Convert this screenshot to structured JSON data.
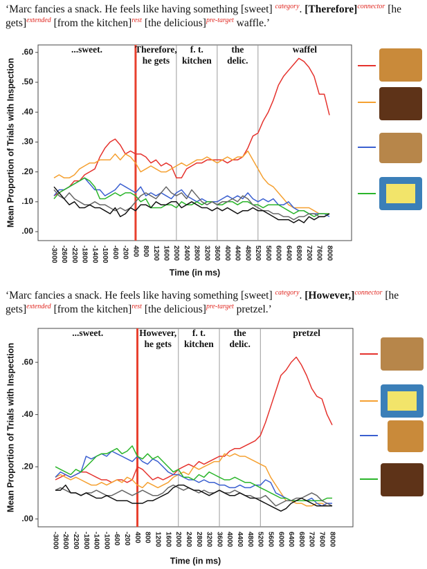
{
  "chart_data": [
    {
      "type": "line",
      "caption": [
        {
          "text": "‘Marc fancies a snack. He feels like having something [sweet] ",
          "style": "plain"
        },
        {
          "text": "category",
          "style": "sup"
        },
        {
          "text": ". ",
          "style": "plain"
        },
        {
          "text": "[Therefore]",
          "style": "bold"
        },
        {
          "text": "connector",
          "style": "sup"
        },
        {
          "text": " [he gets]",
          "style": "plain"
        },
        {
          "text": "extended",
          "style": "sup"
        },
        {
          "text": " [from the kitchen]",
          "style": "plain"
        },
        {
          "text": "rest",
          "style": "sup"
        },
        {
          "text": " [the delicious]",
          "style": "plain"
        },
        {
          "text": "pre-target",
          "style": "sup"
        },
        {
          "text": " waffle.’",
          "style": "plain"
        }
      ],
      "y_label": "Mean Proportion of Trials with Inspection",
      "x_label": "Time (in ms)",
      "regions": [
        [
          "...sweet."
        ],
        [
          "Therefore,",
          "he gets"
        ],
        [
          "f. t.",
          "kitchen"
        ],
        [
          "the",
          "delic."
        ],
        [
          "waffel"
        ]
      ],
      "vlines": [
        {
          "at": "400",
          "color": "#e8402e"
        },
        {
          "at": "2000",
          "color": "#9a9a9a"
        },
        {
          "at": "3600",
          "color": "#9a9a9a"
        },
        {
          "at": "5200",
          "color": "#9a9a9a"
        }
      ],
      "categories": [
        "-3000",
        null,
        "-2600",
        null,
        "-2200",
        null,
        "-1800",
        null,
        "-1400",
        null,
        "-1000",
        null,
        "-600",
        null,
        "-200",
        null,
        "400",
        null,
        "800",
        null,
        "1200",
        null,
        "1600",
        null,
        "2000",
        null,
        "2400",
        null,
        "2800",
        null,
        "3200",
        null,
        "3600",
        null,
        "4000",
        null,
        "4400",
        null,
        "4800",
        null,
        "5200",
        null,
        "5600",
        null,
        "6000",
        null,
        "6400",
        null,
        "6800",
        null,
        "7200",
        null,
        "7600",
        null,
        "8000"
      ],
      "ylim": [
        -0.03,
        0.625
      ],
      "yticks": [
        {
          "value": 0,
          "label": ".00"
        },
        {
          "value": 0.1,
          "label": ".10"
        },
        {
          "value": 0.2,
          "label": ".20"
        },
        {
          "value": 0.3,
          "label": ".30"
        },
        {
          "value": 0.4,
          "label": ".40"
        },
        {
          "value": 0.5,
          "label": ".50"
        },
        {
          "value": 0.6,
          "label": ".60"
        }
      ],
      "legend": "right",
      "series": [
        {
          "color": "#e5322d",
          "values": [
            0.12,
            0.13,
            0.14,
            0.15,
            0.17,
            0.17,
            0.19,
            0.2,
            0.21,
            0.25,
            0.28,
            0.3,
            0.31,
            0.29,
            0.26,
            0.27,
            0.26,
            0.26,
            0.25,
            0.23,
            0.24,
            0.22,
            0.23,
            0.22,
            0.18,
            0.18,
            0.21,
            0.22,
            0.23,
            0.23,
            0.24,
            0.24,
            0.24,
            0.24,
            0.23,
            0.24,
            0.24,
            0.25,
            0.28,
            0.32,
            0.33,
            0.37,
            0.4,
            0.44,
            0.49,
            0.52,
            0.54,
            0.56,
            0.58,
            0.57,
            0.55,
            0.52,
            0.46,
            0.46,
            0.39
          ]
        },
        {
          "color": "#f5a030",
          "values": [
            0.18,
            0.19,
            0.18,
            0.18,
            0.19,
            0.21,
            0.22,
            0.23,
            0.23,
            0.24,
            0.24,
            0.24,
            0.26,
            0.24,
            0.26,
            0.25,
            0.23,
            0.2,
            0.21,
            0.22,
            0.21,
            0.2,
            0.2,
            0.21,
            0.22,
            0.23,
            0.22,
            0.23,
            0.24,
            0.24,
            0.25,
            0.24,
            0.23,
            0.24,
            0.25,
            0.24,
            0.25,
            0.25,
            0.27,
            0.24,
            0.21,
            0.18,
            0.16,
            0.15,
            0.13,
            0.11,
            0.09,
            0.08,
            0.08,
            0.08,
            0.08,
            0.07,
            0.06,
            0.06,
            0.06
          ]
        },
        {
          "color": "#3a5fd0",
          "values": [
            0.12,
            0.14,
            0.14,
            0.15,
            0.16,
            0.17,
            0.18,
            0.16,
            0.14,
            0.14,
            0.12,
            0.13,
            0.14,
            0.16,
            0.15,
            0.14,
            0.13,
            0.15,
            0.12,
            0.13,
            0.12,
            0.13,
            0.12,
            0.11,
            0.13,
            0.14,
            0.12,
            0.11,
            0.1,
            0.11,
            0.1,
            0.1,
            0.1,
            0.11,
            0.12,
            0.11,
            0.12,
            0.11,
            0.13,
            0.11,
            0.1,
            0.11,
            0.1,
            0.11,
            0.09,
            0.09,
            0.1,
            0.08,
            0.07,
            0.07,
            0.06,
            0.06,
            0.06,
            0.06,
            0.05
          ]
        },
        {
          "color": "#2ab52a",
          "values": [
            0.11,
            0.13,
            0.14,
            0.15,
            0.16,
            0.17,
            0.18,
            0.17,
            0.15,
            0.11,
            0.11,
            0.12,
            0.13,
            0.12,
            0.13,
            0.13,
            0.12,
            0.1,
            0.11,
            0.08,
            0.08,
            0.08,
            0.09,
            0.09,
            0.08,
            0.1,
            0.09,
            0.09,
            0.1,
            0.09,
            0.1,
            0.1,
            0.09,
            0.09,
            0.1,
            0.1,
            0.09,
            0.1,
            0.1,
            0.09,
            0.09,
            0.08,
            0.09,
            0.09,
            0.09,
            0.08,
            0.07,
            0.06,
            0.07,
            0.07,
            0.06,
            0.05,
            0.06,
            0.06,
            0.06
          ]
        },
        {
          "color": "#666666",
          "values": [
            0.14,
            0.12,
            0.11,
            0.13,
            0.11,
            0.1,
            0.09,
            0.09,
            0.1,
            0.09,
            0.09,
            0.08,
            0.07,
            0.08,
            0.07,
            0.08,
            0.1,
            0.12,
            0.13,
            0.12,
            0.11,
            0.13,
            0.15,
            0.13,
            0.12,
            0.13,
            0.11,
            0.14,
            0.12,
            0.1,
            0.09,
            0.1,
            0.09,
            0.1,
            0.1,
            0.11,
            0.1,
            0.12,
            0.11,
            0.09,
            0.08,
            0.07,
            0.07,
            0.06,
            0.06,
            0.05,
            0.05,
            0.04,
            0.05,
            0.05,
            0.06,
            0.06,
            0.05,
            0.05,
            0.06
          ]
        },
        {
          "color": "#111111",
          "values": [
            0.15,
            0.13,
            0.11,
            0.09,
            0.1,
            0.08,
            0.08,
            0.09,
            0.08,
            0.08,
            0.07,
            0.06,
            0.08,
            0.05,
            0.06,
            0.08,
            0.07,
            0.09,
            0.09,
            0.08,
            0.1,
            0.09,
            0.09,
            0.1,
            0.1,
            0.08,
            0.09,
            0.1,
            0.09,
            0.08,
            0.08,
            0.07,
            0.08,
            0.07,
            0.08,
            0.07,
            0.06,
            0.07,
            0.07,
            0.08,
            0.07,
            0.07,
            0.06,
            0.05,
            0.04,
            0.04,
            0.04,
            0.03,
            0.04,
            0.03,
            0.05,
            0.04,
            0.05,
            0.05,
            0.06
          ]
        }
      ]
    },
    {
      "type": "line",
      "caption": [
        {
          "text": "‘Marc fancies a snack. He feels like having something [sweet] ",
          "style": "plain"
        },
        {
          "text": "category",
          "style": "sup"
        },
        {
          "text": ". ",
          "style": "plain"
        },
        {
          "text": "[However,]",
          "style": "bold"
        },
        {
          "text": "connector",
          "style": "sup"
        },
        {
          "text": " [he gets]",
          "style": "plain"
        },
        {
          "text": "extended",
          "style": "sup"
        },
        {
          "text": " [from the kitchen]",
          "style": "plain"
        },
        {
          "text": "rest",
          "style": "sup"
        },
        {
          "text": " [the delicious]",
          "style": "plain"
        },
        {
          "text": "pre-target",
          "style": "sup"
        },
        {
          "text": " pretzel.’",
          "style": "plain"
        }
      ],
      "y_label": "Mean Proportion of Trials with Inspection",
      "x_label": "Time (in ms)",
      "regions": [
        [
          "...sweet."
        ],
        [
          "However,",
          "he gets"
        ],
        [
          "f. t.",
          "kitchen"
        ],
        [
          "the",
          "delic."
        ],
        [
          "pretzel"
        ]
      ],
      "vlines": [
        {
          "at": "400",
          "color": "#e8402e"
        },
        {
          "at": "2000",
          "color": "#9a9a9a"
        },
        {
          "at": "3600",
          "color": "#9a9a9a"
        },
        {
          "at": "5200",
          "color": "#9a9a9a"
        }
      ],
      "categories": [
        "-3000",
        null,
        "-2600",
        null,
        "-2200",
        null,
        "-1800",
        null,
        "-1400",
        null,
        "-1000",
        null,
        "-600",
        null,
        "-200",
        null,
        "400",
        null,
        "800",
        null,
        "1200",
        null,
        "1600",
        null,
        "2000",
        null,
        "2400",
        null,
        "2800",
        null,
        "3200",
        null,
        "3600",
        null,
        "4000",
        null,
        "4400",
        null,
        "4800",
        null,
        "5200",
        null,
        "5600",
        null,
        "6000",
        null,
        "6400",
        null,
        "6800",
        null,
        "7200",
        null,
        "7600",
        null,
        "8000"
      ],
      "ylim": [
        -0.03,
        0.73
      ],
      "yticks": [
        {
          "value": 0,
          "label": ".00"
        },
        {
          "value": 0.2,
          "label": ".20"
        },
        {
          "value": 0.4,
          "label": ".40"
        },
        {
          "value": 0.6,
          "label": ".60"
        }
      ],
      "legend": "right",
      "series": [
        {
          "color": "#e5322d",
          "values": [
            0.15,
            0.16,
            0.17,
            0.16,
            0.17,
            0.18,
            0.18,
            0.17,
            0.16,
            0.15,
            0.15,
            0.14,
            0.15,
            0.15,
            0.14,
            0.15,
            0.2,
            0.19,
            0.17,
            0.15,
            0.16,
            0.15,
            0.16,
            0.17,
            0.19,
            0.2,
            0.21,
            0.2,
            0.22,
            0.21,
            0.22,
            0.23,
            0.24,
            0.24,
            0.26,
            0.27,
            0.27,
            0.28,
            0.29,
            0.3,
            0.32,
            0.37,
            0.43,
            0.49,
            0.55,
            0.57,
            0.6,
            0.62,
            0.59,
            0.55,
            0.5,
            0.47,
            0.46,
            0.4,
            0.36
          ]
        },
        {
          "color": "#f5a030",
          "values": [
            0.16,
            0.17,
            0.16,
            0.15,
            0.16,
            0.15,
            0.14,
            0.13,
            0.13,
            0.14,
            0.13,
            0.14,
            0.15,
            0.14,
            0.16,
            0.15,
            0.13,
            0.12,
            0.14,
            0.13,
            0.12,
            0.13,
            0.14,
            0.16,
            0.17,
            0.18,
            0.17,
            0.2,
            0.19,
            0.2,
            0.21,
            0.22,
            0.22,
            0.25,
            0.24,
            0.25,
            0.24,
            0.24,
            0.23,
            0.22,
            0.21,
            0.2,
            0.16,
            0.13,
            0.1,
            0.07,
            0.07,
            0.06,
            0.06,
            0.05,
            0.05,
            0.06,
            0.06,
            0.05,
            0.05
          ]
        },
        {
          "color": "#3a5fd0",
          "values": [
            0.16,
            0.18,
            0.17,
            0.16,
            0.17,
            0.18,
            0.24,
            0.23,
            0.24,
            0.25,
            0.24,
            0.26,
            0.25,
            0.24,
            0.23,
            0.22,
            0.24,
            0.22,
            0.21,
            0.23,
            0.22,
            0.2,
            0.18,
            0.17,
            0.17,
            0.16,
            0.15,
            0.15,
            0.14,
            0.15,
            0.14,
            0.14,
            0.13,
            0.13,
            0.12,
            0.12,
            0.13,
            0.12,
            0.12,
            0.13,
            0.13,
            0.15,
            0.14,
            0.1,
            0.09,
            0.08,
            0.07,
            0.07,
            0.07,
            0.07,
            0.08,
            0.06,
            0.05,
            0.06,
            0.06
          ]
        },
        {
          "color": "#2ab52a",
          "values": [
            0.2,
            0.19,
            0.18,
            0.17,
            0.19,
            0.18,
            0.2,
            0.22,
            0.24,
            0.25,
            0.25,
            0.26,
            0.27,
            0.25,
            0.26,
            0.28,
            0.24,
            0.23,
            0.25,
            0.23,
            0.24,
            0.22,
            0.2,
            0.18,
            0.19,
            0.16,
            0.16,
            0.15,
            0.17,
            0.16,
            0.18,
            0.17,
            0.16,
            0.15,
            0.15,
            0.16,
            0.15,
            0.14,
            0.14,
            0.13,
            0.12,
            0.11,
            0.1,
            0.09,
            0.08,
            0.08,
            0.07,
            0.07,
            0.07,
            0.07,
            0.07,
            0.07,
            0.07,
            0.08,
            0.08
          ]
        },
        {
          "color": "#666666",
          "values": [
            0.11,
            0.12,
            0.11,
            0.1,
            0.1,
            0.09,
            0.1,
            0.1,
            0.11,
            0.1,
            0.09,
            0.09,
            0.1,
            0.11,
            0.1,
            0.09,
            0.1,
            0.11,
            0.1,
            0.09,
            0.09,
            0.1,
            0.12,
            0.13,
            0.12,
            0.11,
            0.12,
            0.11,
            0.1,
            0.11,
            0.1,
            0.1,
            0.11,
            0.1,
            0.1,
            0.11,
            0.1,
            0.09,
            0.09,
            0.08,
            0.08,
            0.09,
            0.07,
            0.05,
            0.06,
            0.07,
            0.07,
            0.08,
            0.08,
            0.09,
            0.1,
            0.09,
            0.07,
            0.06,
            0.05
          ]
        },
        {
          "color": "#111111",
          "values": [
            0.11,
            0.11,
            0.13,
            0.1,
            0.1,
            0.09,
            0.1,
            0.09,
            0.08,
            0.08,
            0.09,
            0.08,
            0.07,
            0.07,
            0.07,
            0.06,
            0.06,
            0.06,
            0.07,
            0.07,
            0.08,
            0.09,
            0.1,
            0.12,
            0.13,
            0.13,
            0.12,
            0.11,
            0.11,
            0.1,
            0.09,
            0.1,
            0.11,
            0.1,
            0.09,
            0.09,
            0.1,
            0.09,
            0.08,
            0.08,
            0.07,
            0.06,
            0.05,
            0.04,
            0.03,
            0.04,
            0.06,
            0.07,
            0.08,
            0.07,
            0.06,
            0.05,
            0.05,
            0.05,
            0.05
          ]
        }
      ]
    }
  ]
}
